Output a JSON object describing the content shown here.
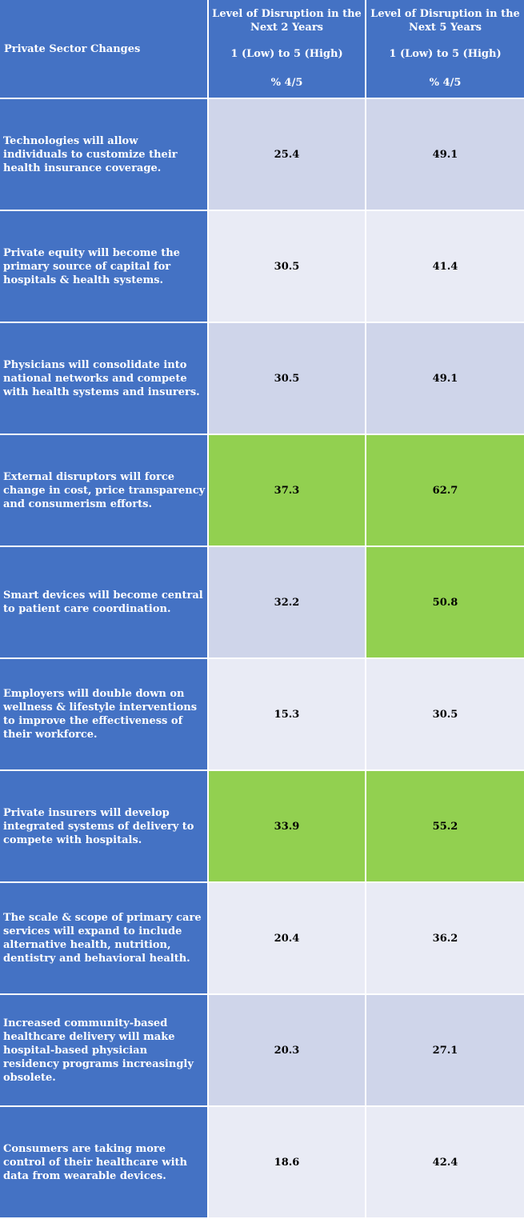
{
  "header": {
    "label": "Private Sector Changes",
    "col_2yr": {
      "title": "Level of Disruption in the Next 2 Years",
      "scale": "1 (Low) to 5 (High)",
      "metric": "% 4/5"
    },
    "col_5yr": {
      "title": "Level of Disruption in the Next 5 Years",
      "scale": "1 (Low) to 5 (High)",
      "metric": "% 4/5"
    }
  },
  "colors": {
    "header_bg": "#4472C4",
    "band_dark": "#CFD5EA",
    "band_light": "#E9EBF5",
    "highlight": "#92D050"
  },
  "chart_data": {
    "type": "table",
    "columns": [
      "Private Sector Changes",
      "Level of Disruption in the Next 2 Years",
      "Level of Disruption in the Next 5 Years"
    ],
    "rows": [
      {
        "label": "Technologies will allow individuals to customize their health insurance coverage.",
        "two_year": "25.4",
        "five_year": "49.1",
        "highlight_2yr": false,
        "highlight_5yr": false
      },
      {
        "label": "Private equity will become the primary source of capital for hospitals & health systems.",
        "two_year": "30.5",
        "five_year": "41.4",
        "highlight_2yr": false,
        "highlight_5yr": false
      },
      {
        "label": "Physicians will consolidate into national networks and compete with health systems and insurers.",
        "two_year": "30.5",
        "five_year": "49.1",
        "highlight_2yr": false,
        "highlight_5yr": false
      },
      {
        "label": "External disruptors will force change in cost, price transparency and consumerism efforts.",
        "two_year": "37.3",
        "five_year": "62.7",
        "highlight_2yr": true,
        "highlight_5yr": true
      },
      {
        "label": "Smart devices will become central to patient care coordination.",
        "two_year": "32.2",
        "five_year": "50.8",
        "highlight_2yr": false,
        "highlight_5yr": true
      },
      {
        "label": "Employers will double down on wellness & lifestyle interventions to improve the effectiveness of their workforce.",
        "two_year": "15.3",
        "five_year": "30.5",
        "highlight_2yr": false,
        "highlight_5yr": false
      },
      {
        "label": "Private insurers will develop integrated systems of delivery to compete with hospitals.",
        "two_year": "33.9",
        "five_year": "55.2",
        "highlight_2yr": true,
        "highlight_5yr": true
      },
      {
        "label": "The scale & scope of primary care services will expand to include alternative health, nutrition, dentistry and behavioral health.",
        "two_year": "20.4",
        "five_year": "36.2",
        "highlight_2yr": false,
        "highlight_5yr": false
      },
      {
        "label": "Increased community-based healthcare delivery will make hospital-based physician residency programs increasingly obsolete.",
        "two_year": "20.3",
        "five_year": "27.1",
        "highlight_2yr": false,
        "highlight_5yr": false
      },
      {
        "label": "Consumers are taking more control of their healthcare with data from wearable devices.",
        "two_year": "18.6",
        "five_year": "42.4",
        "highlight_2yr": false,
        "highlight_5yr": false
      }
    ]
  }
}
